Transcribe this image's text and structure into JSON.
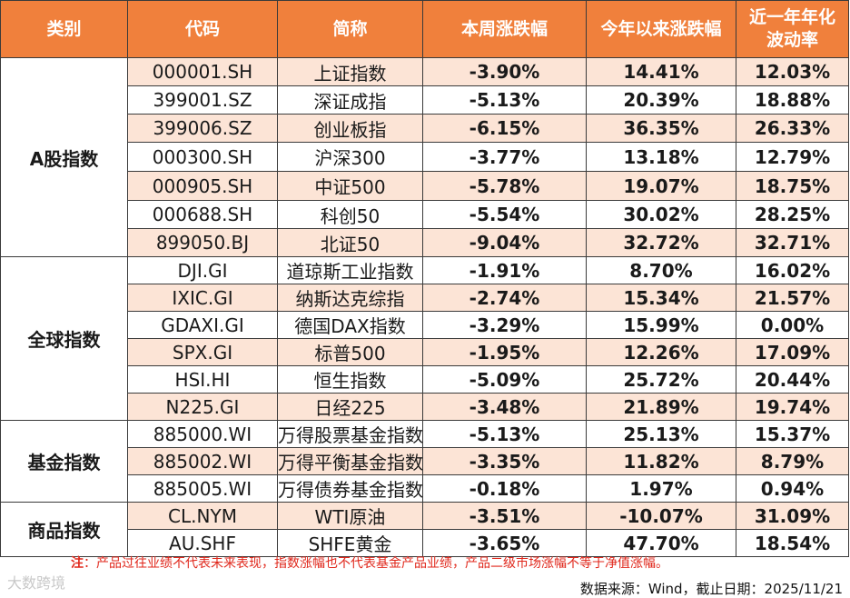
{
  "colors": {
    "header_bg": "#f0803c",
    "band": "#fce4d6",
    "up": "#e0271b",
    "down": "#1f9e4a"
  },
  "headers": [
    "类别",
    "代码",
    "简称",
    "本周涨跌幅",
    "今年以来涨跌幅",
    "近一年年化\n波动率"
  ],
  "groups": [
    {
      "category": "A股指数",
      "rows": [
        {
          "code": "000001.SH",
          "name": "上证指数",
          "week": "-3.90%",
          "ytd": "14.41%",
          "vol": "12.03%"
        },
        {
          "code": "399001.SZ",
          "name": "深证成指",
          "week": "-5.13%",
          "ytd": "20.39%",
          "vol": "18.88%"
        },
        {
          "code": "399006.SZ",
          "name": "创业板指",
          "week": "-6.15%",
          "ytd": "36.35%",
          "vol": "26.33%"
        },
        {
          "code": "000300.SH",
          "name": "沪深300",
          "week": "-3.77%",
          "ytd": "13.18%",
          "vol": "12.79%"
        },
        {
          "code": "000905.SH",
          "name": "中证500",
          "week": "-5.78%",
          "ytd": "19.07%",
          "vol": "18.75%"
        },
        {
          "code": "000688.SH",
          "name": "科创50",
          "week": "-5.54%",
          "ytd": "30.02%",
          "vol": "28.25%"
        },
        {
          "code": "899050.BJ",
          "name": "北证50",
          "week": "-9.04%",
          "ytd": "32.72%",
          "vol": "32.71%"
        }
      ]
    },
    {
      "category": "全球指数",
      "rows": [
        {
          "code": "DJI.GI",
          "name": "道琼斯工业指数",
          "week": "-1.91%",
          "ytd": "8.70%",
          "vol": "16.02%"
        },
        {
          "code": "IXIC.GI",
          "name": "纳斯达克综指",
          "week": "-2.74%",
          "ytd": "15.34%",
          "vol": "21.57%"
        },
        {
          "code": "GDAXI.GI",
          "name": "德国DAX指数",
          "week": "-3.29%",
          "ytd": "15.99%",
          "vol": "0.00%"
        },
        {
          "code": "SPX.GI",
          "name": "标普500",
          "week": "-1.95%",
          "ytd": "12.26%",
          "vol": "17.09%"
        },
        {
          "code": "HSI.HI",
          "name": "恒生指数",
          "week": "-5.09%",
          "ytd": "25.72%",
          "vol": "20.44%"
        },
        {
          "code": "N225.GI",
          "name": "日经225",
          "week": "-3.48%",
          "ytd": "21.89%",
          "vol": "19.74%"
        }
      ]
    },
    {
      "category": "基金指数",
      "rows": [
        {
          "code": "885000.WI",
          "name": "万得股票基金指数",
          "week": "-5.13%",
          "ytd": "25.13%",
          "vol": "15.37%"
        },
        {
          "code": "885002.WI",
          "name": "万得平衡基金指数",
          "week": "-3.35%",
          "ytd": "11.82%",
          "vol": "8.79%"
        },
        {
          "code": "885005.WI",
          "name": "万得债券基金指数",
          "week": "-0.18%",
          "ytd": "1.97%",
          "vol": "0.94%"
        }
      ]
    },
    {
      "category": "商品指数",
      "rows": [
        {
          "code": "CL.NYM",
          "name": "WTI原油",
          "week": "-3.51%",
          "ytd": "-10.07%",
          "vol": "31.09%"
        },
        {
          "code": "AU.SHF",
          "name": "SHFE黄金",
          "week": "-3.65%",
          "ytd": "47.70%",
          "vol": "18.54%"
        }
      ]
    }
  ],
  "footer": {
    "note_label": "注",
    "note_text": "：产品过往业绩不代表未来表现，指数涨幅也不代表基金产品业绩，产品二级市场涨幅不等于净值涨幅。",
    "source": "数据来源：Wind，截止日期：2025/11/21",
    "watermark": "大数跨境"
  }
}
